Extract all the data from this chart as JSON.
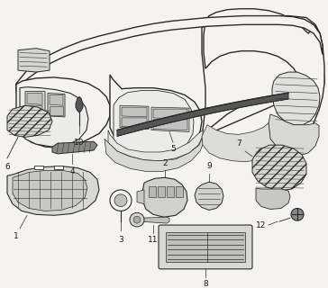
{
  "background_color": "#f5f3ef",
  "line_color": "#2a2a2a",
  "label_color": "#1a1a1a",
  "label_fontsize": 6.5,
  "figsize": [
    3.64,
    3.2
  ],
  "dpi": 100
}
